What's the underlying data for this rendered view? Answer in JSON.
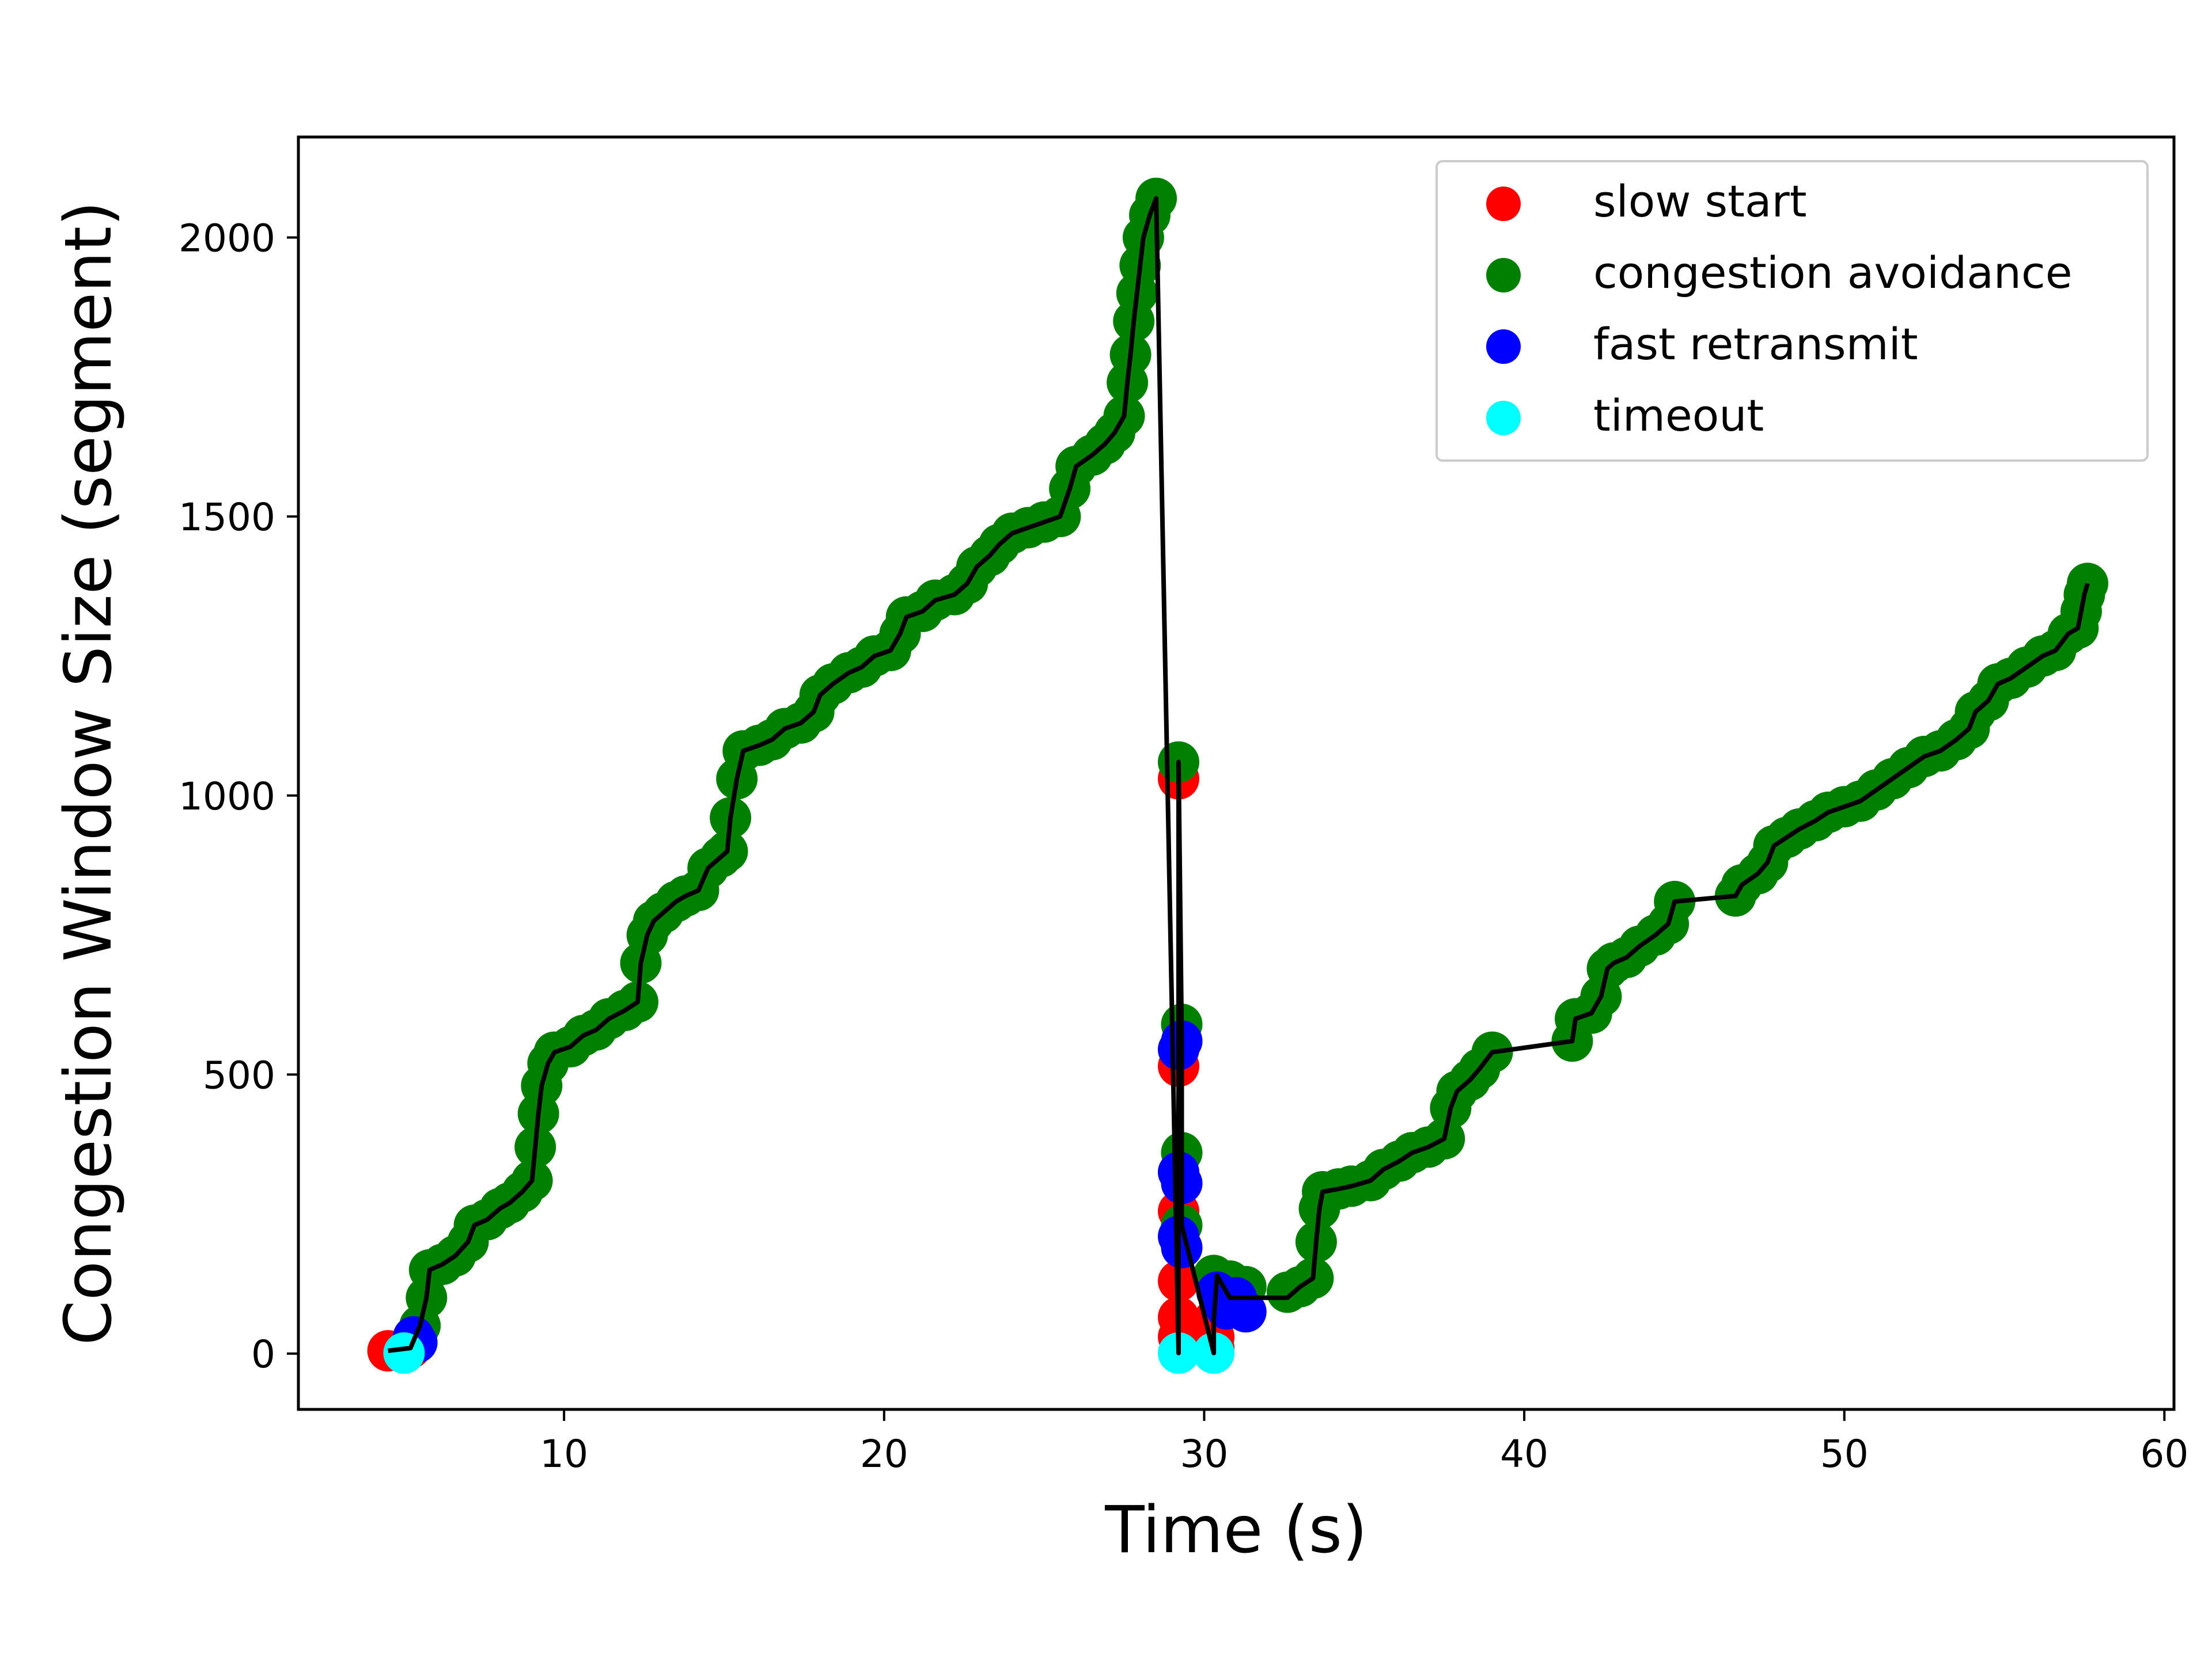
{
  "chart_data": {
    "type": "scatter",
    "title": "",
    "xlabel": "Time (s)",
    "ylabel": "Congestion Window Size (segment)",
    "xlim": [
      1.7,
      60.3
    ],
    "ylim": [
      -100,
      2180
    ],
    "xticks": [
      10,
      20,
      30,
      40,
      50,
      60
    ],
    "yticks": [
      0,
      500,
      1000,
      1500,
      2000
    ],
    "grid": false,
    "legend_position": "top-right",
    "line_color": "#000000",
    "series": [
      {
        "name": "slow start",
        "color": "#ff0000",
        "points": [
          [
            4.5,
            5
          ],
          [
            5.2,
            10
          ],
          [
            29.2,
            1030
          ],
          [
            29.2,
            515
          ],
          [
            29.2,
            255
          ],
          [
            29.2,
            130
          ],
          [
            29.2,
            65
          ],
          [
            29.2,
            30
          ],
          [
            30.3,
            10
          ],
          [
            30.3,
            30
          ],
          [
            30.3,
            60
          ]
        ]
      },
      {
        "name": "congestion avoidance",
        "color": "#008000",
        "points": [
          [
            5.5,
            50
          ],
          [
            5.7,
            100
          ],
          [
            5.8,
            150
          ],
          [
            6.2,
            160
          ],
          [
            6.6,
            175
          ],
          [
            7.0,
            200
          ],
          [
            7.2,
            230
          ],
          [
            7.6,
            240
          ],
          [
            8.0,
            260
          ],
          [
            8.3,
            270
          ],
          [
            8.7,
            290
          ],
          [
            9.0,
            310
          ],
          [
            9.1,
            370
          ],
          [
            9.2,
            430
          ],
          [
            9.3,
            480
          ],
          [
            9.5,
            520
          ],
          [
            9.7,
            540
          ],
          [
            10.2,
            550
          ],
          [
            10.6,
            570
          ],
          [
            11.0,
            580
          ],
          [
            11.4,
            600
          ],
          [
            11.9,
            615
          ],
          [
            12.3,
            630
          ],
          [
            12.4,
            700
          ],
          [
            12.6,
            750
          ],
          [
            12.8,
            775
          ],
          [
            13.1,
            790
          ],
          [
            13.5,
            810
          ],
          [
            13.8,
            820
          ],
          [
            14.2,
            830
          ],
          [
            14.5,
            870
          ],
          [
            14.9,
            890
          ],
          [
            15.1,
            900
          ],
          [
            15.2,
            960
          ],
          [
            15.4,
            1030
          ],
          [
            15.6,
            1080
          ],
          [
            16.1,
            1090
          ],
          [
            16.5,
            1100
          ],
          [
            16.9,
            1120
          ],
          [
            17.4,
            1130
          ],
          [
            17.8,
            1150
          ],
          [
            18.0,
            1180
          ],
          [
            18.4,
            1200
          ],
          [
            18.9,
            1220
          ],
          [
            19.3,
            1230
          ],
          [
            19.7,
            1250
          ],
          [
            20.2,
            1260
          ],
          [
            20.5,
            1290
          ],
          [
            20.7,
            1320
          ],
          [
            21.2,
            1330
          ],
          [
            21.6,
            1350
          ],
          [
            22.2,
            1360
          ],
          [
            22.6,
            1380
          ],
          [
            22.9,
            1410
          ],
          [
            23.3,
            1430
          ],
          [
            23.6,
            1450
          ],
          [
            24.0,
            1470
          ],
          [
            24.5,
            1480
          ],
          [
            25.0,
            1490
          ],
          [
            25.5,
            1500
          ],
          [
            25.8,
            1550
          ],
          [
            26.0,
            1590
          ],
          [
            26.5,
            1610
          ],
          [
            26.9,
            1630
          ],
          [
            27.2,
            1650
          ],
          [
            27.5,
            1680
          ],
          [
            27.6,
            1740
          ],
          [
            27.7,
            1790
          ],
          [
            27.8,
            1850
          ],
          [
            27.9,
            1900
          ],
          [
            28.0,
            1950
          ],
          [
            28.1,
            2000
          ],
          [
            28.3,
            2040
          ],
          [
            28.5,
            2070
          ],
          [
            29.2,
            1060
          ],
          [
            29.3,
            590
          ],
          [
            29.3,
            360
          ],
          [
            29.3,
            230
          ],
          [
            30.3,
            140
          ],
          [
            30.8,
            130
          ],
          [
            31.3,
            120
          ],
          [
            32.6,
            110
          ],
          [
            33.0,
            120
          ],
          [
            33.4,
            135
          ],
          [
            33.5,
            200
          ],
          [
            33.6,
            260
          ],
          [
            33.7,
            290
          ],
          [
            34.2,
            295
          ],
          [
            34.6,
            300
          ],
          [
            35.2,
            310
          ],
          [
            35.6,
            330
          ],
          [
            36.1,
            345
          ],
          [
            36.5,
            360
          ],
          [
            37.0,
            370
          ],
          [
            37.5,
            385
          ],
          [
            37.7,
            440
          ],
          [
            37.9,
            470
          ],
          [
            38.3,
            490
          ],
          [
            38.6,
            510
          ],
          [
            39.0,
            540
          ],
          [
            41.5,
            560
          ],
          [
            41.6,
            600
          ],
          [
            42.1,
            610
          ],
          [
            42.4,
            640
          ],
          [
            42.6,
            690
          ],
          [
            42.8,
            700
          ],
          [
            43.2,
            710
          ],
          [
            43.6,
            730
          ],
          [
            44.1,
            750
          ],
          [
            44.5,
            770
          ],
          [
            44.7,
            810
          ],
          [
            46.6,
            820
          ],
          [
            46.8,
            840
          ],
          [
            47.3,
            860
          ],
          [
            47.6,
            880
          ],
          [
            47.8,
            910
          ],
          [
            48.2,
            925
          ],
          [
            48.6,
            940
          ],
          [
            49.1,
            955
          ],
          [
            49.5,
            970
          ],
          [
            50.0,
            980
          ],
          [
            50.5,
            990
          ],
          [
            51.0,
            1010
          ],
          [
            51.5,
            1030
          ],
          [
            52.0,
            1050
          ],
          [
            52.5,
            1070
          ],
          [
            53.0,
            1080
          ],
          [
            53.5,
            1100
          ],
          [
            53.9,
            1120
          ],
          [
            54.1,
            1150
          ],
          [
            54.5,
            1170
          ],
          [
            54.8,
            1200
          ],
          [
            55.2,
            1210
          ],
          [
            55.7,
            1230
          ],
          [
            56.2,
            1250
          ],
          [
            56.6,
            1260
          ],
          [
            57.0,
            1290
          ],
          [
            57.3,
            1300
          ],
          [
            57.4,
            1330
          ],
          [
            57.5,
            1360
          ],
          [
            57.6,
            1380
          ]
        ]
      },
      {
        "name": "fast retransmit",
        "color": "#0000ff",
        "points": [
          [
            5.4,
            20
          ],
          [
            5.3,
            30
          ],
          [
            29.2,
            545
          ],
          [
            29.3,
            560
          ],
          [
            29.2,
            325
          ],
          [
            29.3,
            305
          ],
          [
            29.2,
            210
          ],
          [
            29.3,
            190
          ],
          [
            30.5,
            95
          ],
          [
            30.7,
            80
          ],
          [
            31.0,
            100
          ],
          [
            31.3,
            75
          ],
          [
            30.4,
            110
          ]
        ]
      },
      {
        "name": "timeout",
        "color": "#00ffff",
        "points": [
          [
            5.0,
            1
          ],
          [
            29.2,
            1
          ],
          [
            30.3,
            1
          ]
        ]
      }
    ],
    "line_path": [
      [
        4.5,
        5
      ],
      [
        5.2,
        10
      ],
      [
        5.5,
        50
      ],
      [
        5.7,
        100
      ],
      [
        5.8,
        150
      ],
      [
        6.2,
        160
      ],
      [
        6.6,
        175
      ],
      [
        7.0,
        200
      ],
      [
        7.2,
        230
      ],
      [
        7.6,
        240
      ],
      [
        8.0,
        260
      ],
      [
        8.3,
        270
      ],
      [
        8.7,
        290
      ],
      [
        9.0,
        310
      ],
      [
        9.1,
        370
      ],
      [
        9.2,
        430
      ],
      [
        9.3,
        480
      ],
      [
        9.5,
        520
      ],
      [
        9.7,
        540
      ],
      [
        10.2,
        550
      ],
      [
        10.6,
        570
      ],
      [
        11.0,
        580
      ],
      [
        11.4,
        600
      ],
      [
        11.9,
        615
      ],
      [
        12.3,
        630
      ],
      [
        12.4,
        700
      ],
      [
        12.6,
        750
      ],
      [
        12.8,
        775
      ],
      [
        13.1,
        790
      ],
      [
        13.5,
        810
      ],
      [
        13.8,
        820
      ],
      [
        14.2,
        830
      ],
      [
        14.5,
        870
      ],
      [
        14.9,
        890
      ],
      [
        15.1,
        900
      ],
      [
        15.2,
        960
      ],
      [
        15.4,
        1030
      ],
      [
        15.6,
        1080
      ],
      [
        16.1,
        1090
      ],
      [
        16.5,
        1100
      ],
      [
        16.9,
        1120
      ],
      [
        17.4,
        1130
      ],
      [
        17.8,
        1150
      ],
      [
        18.0,
        1180
      ],
      [
        18.4,
        1200
      ],
      [
        18.9,
        1220
      ],
      [
        19.3,
        1230
      ],
      [
        19.7,
        1250
      ],
      [
        20.2,
        1260
      ],
      [
        20.5,
        1290
      ],
      [
        20.7,
        1320
      ],
      [
        21.2,
        1330
      ],
      [
        21.6,
        1350
      ],
      [
        22.2,
        1360
      ],
      [
        22.6,
        1380
      ],
      [
        22.9,
        1410
      ],
      [
        23.3,
        1430
      ],
      [
        23.6,
        1450
      ],
      [
        24.0,
        1470
      ],
      [
        24.5,
        1480
      ],
      [
        25.0,
        1490
      ],
      [
        25.5,
        1500
      ],
      [
        25.8,
        1550
      ],
      [
        26.0,
        1590
      ],
      [
        26.5,
        1610
      ],
      [
        26.9,
        1630
      ],
      [
        27.2,
        1650
      ],
      [
        27.5,
        1680
      ],
      [
        27.6,
        1740
      ],
      [
        27.7,
        1790
      ],
      [
        27.8,
        1850
      ],
      [
        27.9,
        1900
      ],
      [
        28.0,
        1950
      ],
      [
        28.1,
        2000
      ],
      [
        28.3,
        2040
      ],
      [
        28.5,
        2070
      ],
      [
        29.2,
        1
      ],
      [
        29.2,
        30
      ],
      [
        29.2,
        1060
      ],
      [
        29.3,
        560
      ],
      [
        29.3,
        360
      ],
      [
        29.3,
        230
      ],
      [
        30.3,
        1
      ],
      [
        30.3,
        60
      ],
      [
        30.4,
        140
      ],
      [
        30.8,
        100
      ],
      [
        31.3,
        100
      ],
      [
        32.6,
        100
      ],
      [
        33.0,
        120
      ],
      [
        33.4,
        135
      ],
      [
        33.5,
        200
      ],
      [
        33.6,
        260
      ],
      [
        33.7,
        290
      ],
      [
        34.2,
        295
      ],
      [
        34.6,
        300
      ],
      [
        35.2,
        310
      ],
      [
        35.6,
        330
      ],
      [
        36.1,
        345
      ],
      [
        36.5,
        360
      ],
      [
        37.0,
        370
      ],
      [
        37.5,
        385
      ],
      [
        37.7,
        440
      ],
      [
        37.9,
        470
      ],
      [
        38.3,
        490
      ],
      [
        38.6,
        510
      ],
      [
        39.0,
        540
      ],
      [
        41.5,
        560
      ],
      [
        41.6,
        600
      ],
      [
        42.1,
        610
      ],
      [
        42.4,
        640
      ],
      [
        42.6,
        690
      ],
      [
        42.8,
        700
      ],
      [
        43.2,
        710
      ],
      [
        43.6,
        730
      ],
      [
        44.1,
        750
      ],
      [
        44.5,
        770
      ],
      [
        44.7,
        810
      ],
      [
        46.6,
        820
      ],
      [
        46.8,
        840
      ],
      [
        47.3,
        860
      ],
      [
        47.6,
        880
      ],
      [
        47.8,
        910
      ],
      [
        48.2,
        925
      ],
      [
        48.6,
        940
      ],
      [
        49.1,
        955
      ],
      [
        49.5,
        970
      ],
      [
        50.0,
        980
      ],
      [
        50.5,
        990
      ],
      [
        51.0,
        1010
      ],
      [
        51.5,
        1030
      ],
      [
        52.0,
        1050
      ],
      [
        52.5,
        1070
      ],
      [
        53.0,
        1080
      ],
      [
        53.5,
        1100
      ],
      [
        53.9,
        1120
      ],
      [
        54.1,
        1150
      ],
      [
        54.5,
        1170
      ],
      [
        54.8,
        1200
      ],
      [
        55.2,
        1210
      ],
      [
        55.7,
        1230
      ],
      [
        56.2,
        1250
      ],
      [
        56.6,
        1260
      ],
      [
        57.0,
        1290
      ],
      [
        57.3,
        1300
      ],
      [
        57.4,
        1330
      ],
      [
        57.5,
        1360
      ],
      [
        57.6,
        1380
      ]
    ]
  }
}
